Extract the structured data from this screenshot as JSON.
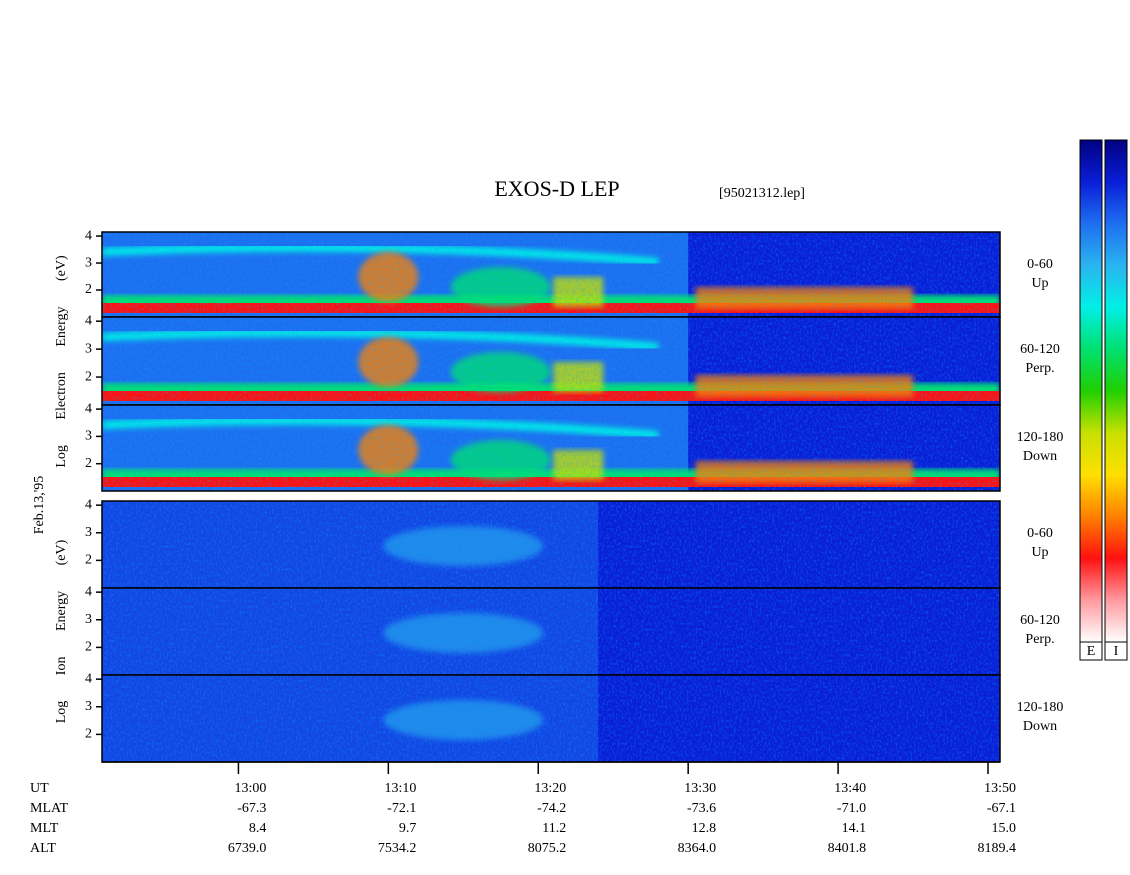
{
  "chart_data": {
    "type": "spectrogram",
    "title": "EXOS-D LEP",
    "subtitle": "[95021312.lep]",
    "date_label": "Feb.13,'95",
    "colorscale": [
      "#000080",
      "#0a1ed8",
      "#1e6ef0",
      "#2ab4f0",
      "#00f0e6",
      "#00e070",
      "#20d000",
      "#c8e000",
      "#ffe000",
      "#ff8000",
      "#ff1010",
      "#ff9aa0",
      "#ffffff"
    ],
    "groups": [
      {
        "ylabel": "Log Electron Energy (eV)",
        "colorbar": "E",
        "panels": [
          {
            "channel": "0-60",
            "direction": "Up"
          },
          {
            "channel": "60-120",
            "direction": "Perp."
          },
          {
            "channel": "120-180",
            "direction": "Down"
          }
        ]
      },
      {
        "ylabel": "Log Ion Energy (eV)",
        "colorbar": "I",
        "panels": [
          {
            "channel": "0-60",
            "direction": "Up"
          },
          {
            "channel": "60-120",
            "direction": "Perp."
          },
          {
            "channel": "120-180",
            "direction": "Down"
          }
        ]
      }
    ],
    "ylim": [
      1,
      4.15
    ],
    "yticks": [
      2,
      3,
      4
    ],
    "xlim": [
      770.9,
      830.8
    ],
    "xticks": [
      {
        "value": 780,
        "label": "13:00"
      },
      {
        "value": 790,
        "label": "13:10"
      },
      {
        "value": 800,
        "label": "13:20"
      },
      {
        "value": 810,
        "label": "13:30"
      },
      {
        "value": 820,
        "label": "13:40"
      },
      {
        "value": 830,
        "label": "13:50"
      }
    ],
    "xlabel": "UT",
    "ephemeris": [
      {
        "name": "MLAT",
        "values": [
          "-67.3",
          "-72.1",
          "-74.2",
          "-73.6",
          "-71.0",
          "-67.1"
        ]
      },
      {
        "name": "MLT",
        "values": [
          "8.4",
          "9.7",
          "11.2",
          "12.8",
          "14.1",
          "15.0"
        ]
      },
      {
        "name": "ALT",
        "values": [
          "6739.0",
          "7534.2",
          "8075.2",
          "8364.0",
          "8401.8",
          "8189.4"
        ]
      }
    ]
  }
}
